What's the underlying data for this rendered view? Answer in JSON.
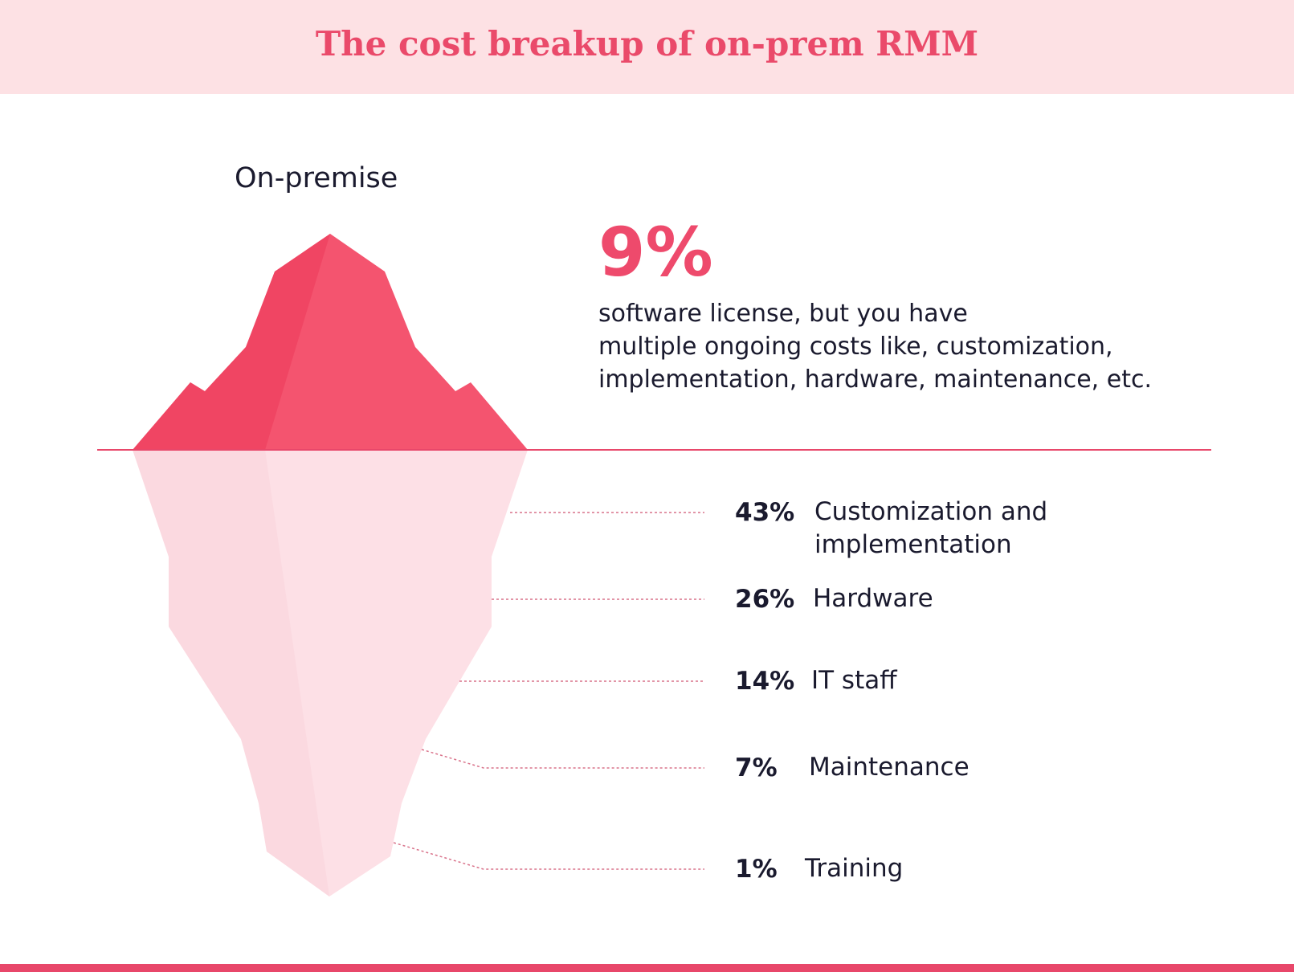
{
  "header": {
    "title": "The cost breakup of on-prem RMM"
  },
  "subtitle": "On-premise",
  "headline": {
    "value": "9%",
    "lines": [
      "software license, but you have",
      "multiple ongoing costs like, customization,",
      "implementation, hardware, maintenance, etc."
    ]
  },
  "items": [
    {
      "percent": "43%",
      "label": "Customization and implementation"
    },
    {
      "percent": "26%",
      "label": "Hardware"
    },
    {
      "percent": "14%",
      "label": "IT staff"
    },
    {
      "percent": "7%",
      "label": "Maintenance"
    },
    {
      "percent": "1%",
      "label": "Training"
    }
  ]
}
